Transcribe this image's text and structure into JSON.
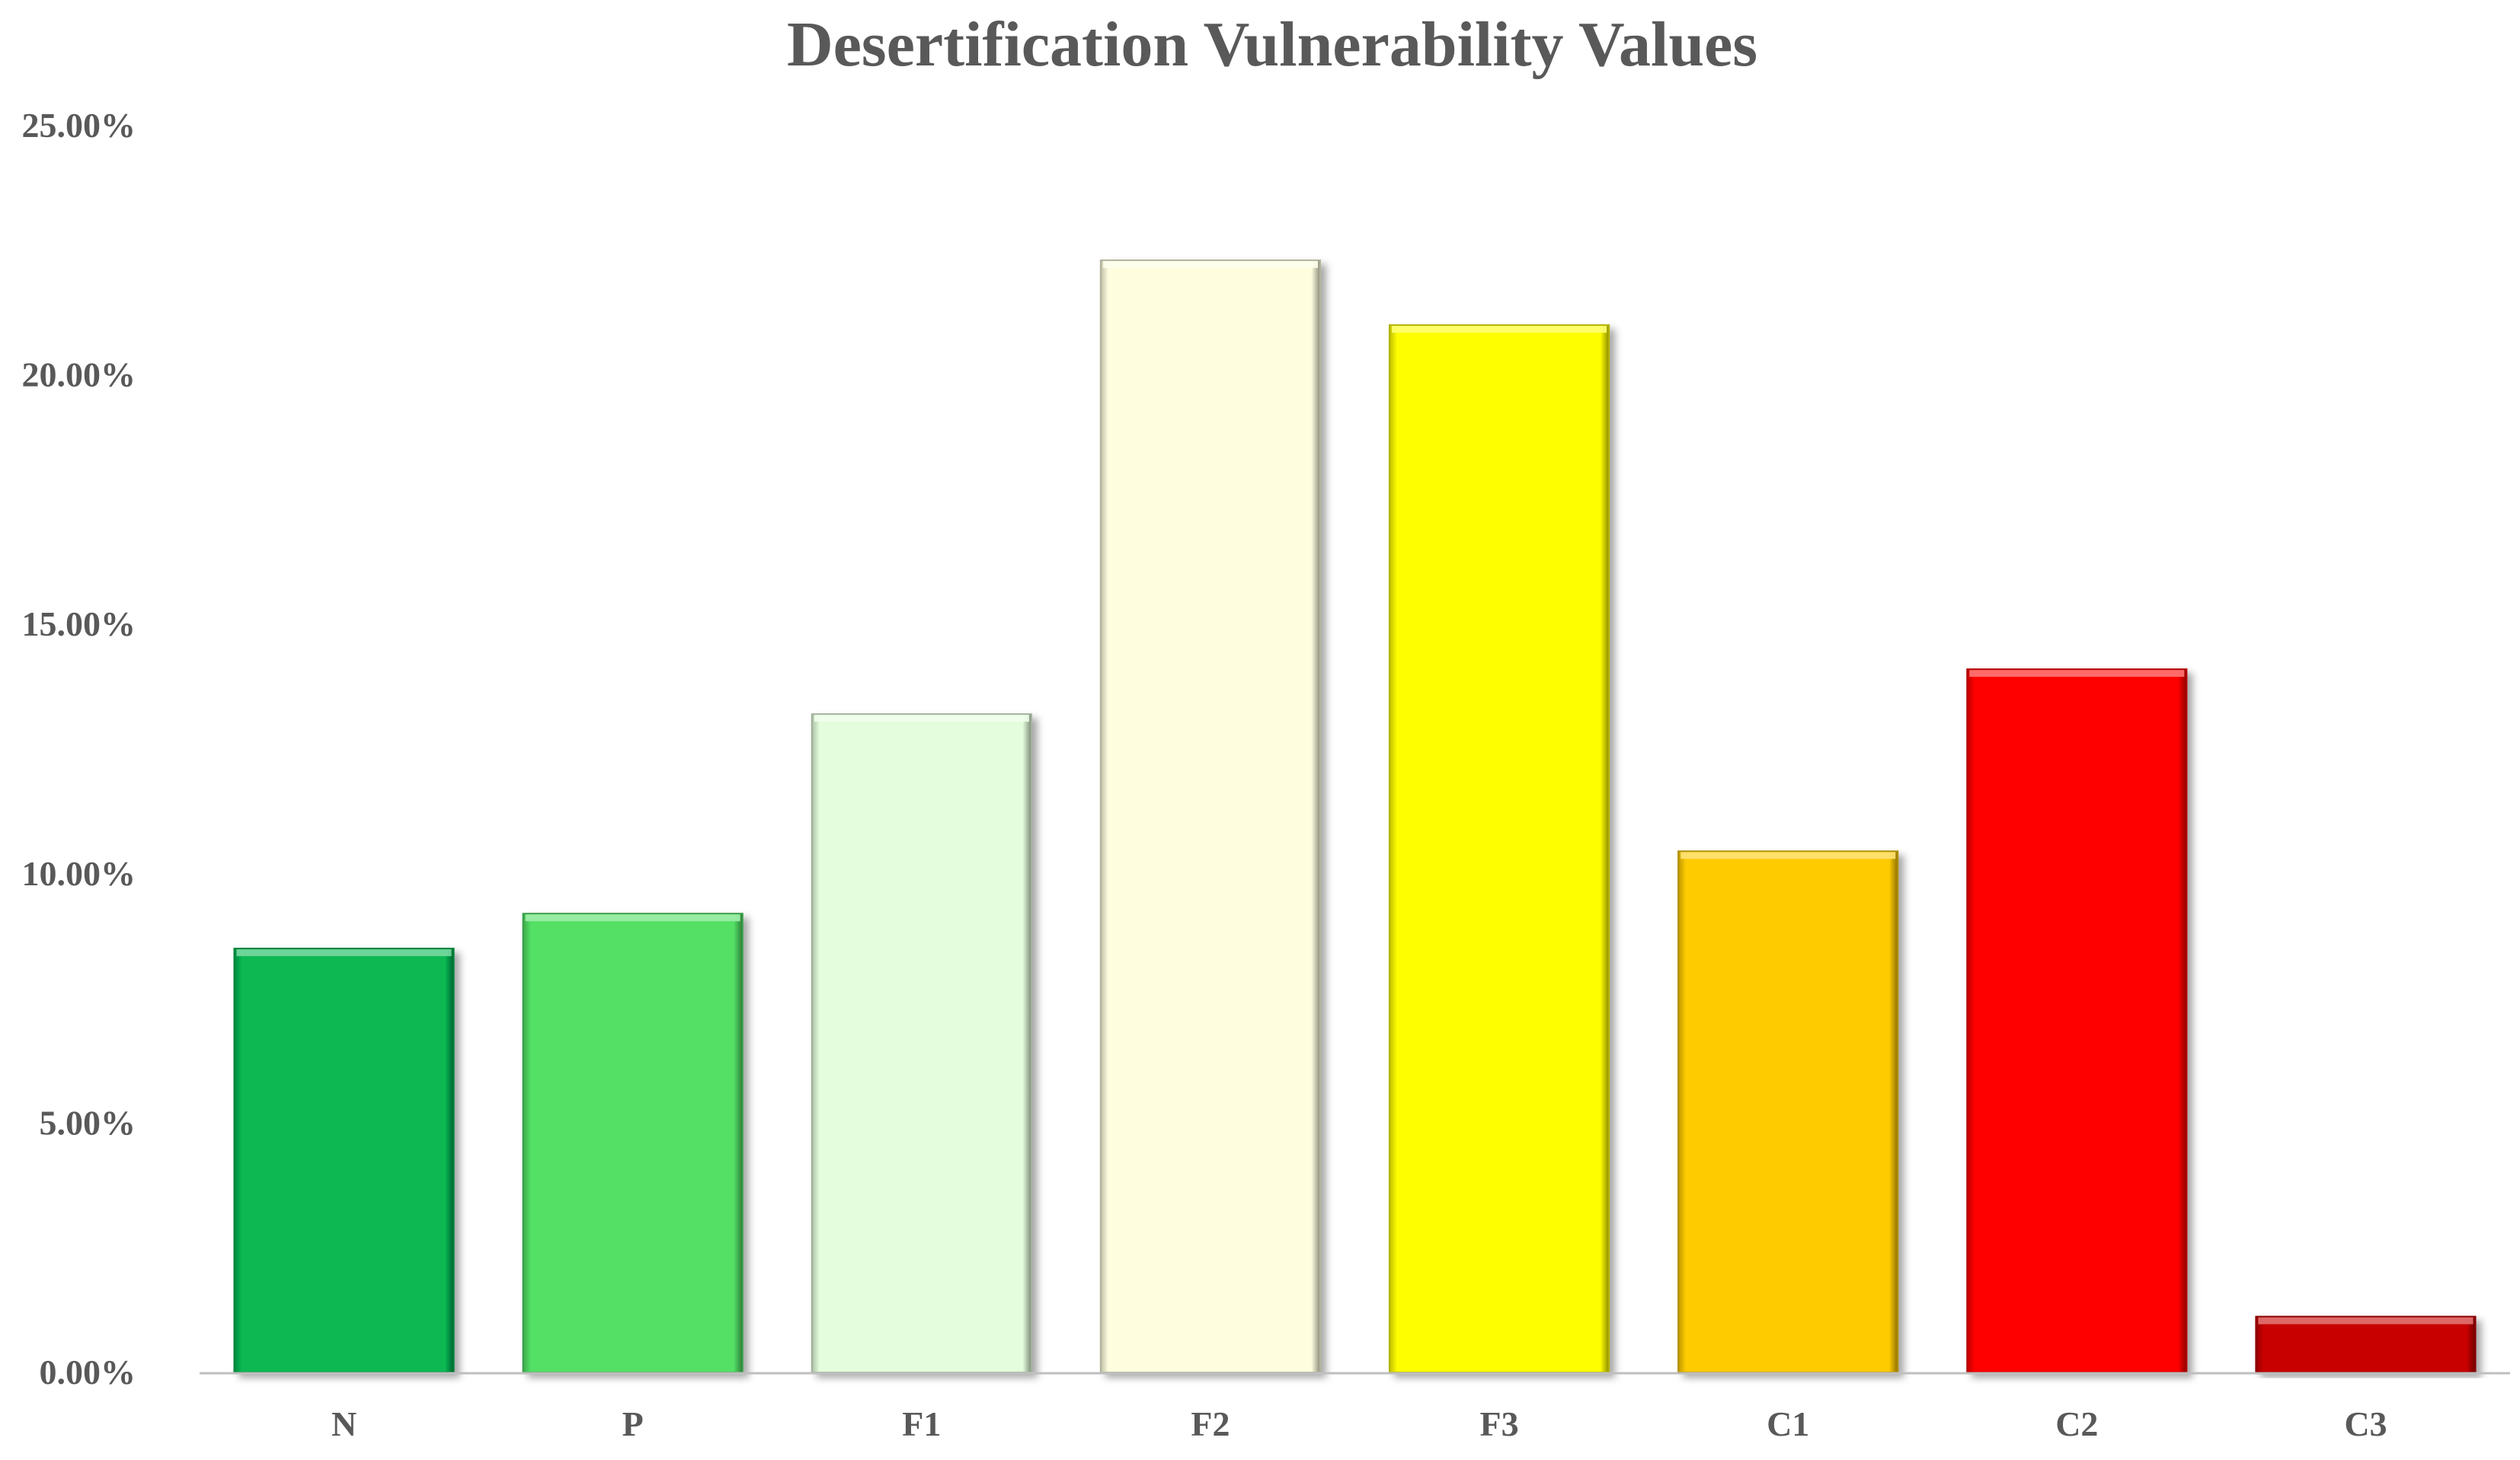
{
  "chart_data": {
    "type": "bar",
    "title": "Desertification Vulnerability Values",
    "xlabel": "",
    "ylabel": "",
    "categories": [
      "N",
      "P",
      "F1",
      "F2",
      "F3",
      "C1",
      "C2",
      "C3"
    ],
    "values": [
      8.5,
      9.2,
      13.2,
      22.3,
      21.0,
      10.45,
      14.1,
      1.12
    ],
    "value_format": "percent",
    "ylim": [
      0,
      25
    ],
    "yticks": [
      0,
      5,
      10,
      15,
      20,
      25
    ],
    "ytick_labels": [
      "0.00%",
      "5.00%",
      "10.00%",
      "15.00%",
      "20.00%",
      "25.00%"
    ],
    "grid": false,
    "legend": "none",
    "bar_colors": [
      "#07B853",
      "#52E065",
      "#E4FDDC",
      "#FEFEDF",
      "#FEFE00",
      "#FECB04",
      "#FE0606",
      "#C80000"
    ],
    "axis_color": "#BFBFBF",
    "text_color": "#595959"
  }
}
